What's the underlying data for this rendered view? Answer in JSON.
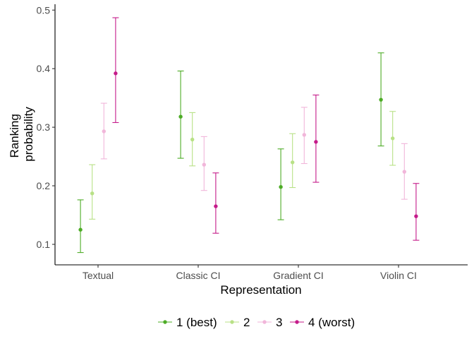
{
  "chart_data": {
    "type": "scatter",
    "title": "",
    "xlabel": "Representation",
    "ylabel": [
      "Ranking",
      "probability"
    ],
    "categories": [
      "Textual",
      "Classic CI",
      "Gradient CI",
      "Violin CI"
    ],
    "ylim": [
      0.065,
      0.51
    ],
    "yticks": [
      "0.1",
      "0.2",
      "0.3",
      "0.4",
      "0.5"
    ],
    "grid": false,
    "legend_position": "bottom",
    "series": [
      {
        "name": "1 (best)",
        "color": "#4dac26",
        "values": [
          0.125,
          0.318,
          0.198,
          0.347
        ],
        "lower": [
          0.086,
          0.247,
          0.142,
          0.268
        ],
        "upper": [
          0.176,
          0.396,
          0.263,
          0.427
        ]
      },
      {
        "name": "2",
        "color": "#b8e186",
        "values": [
          0.187,
          0.279,
          0.24,
          0.281
        ],
        "lower": [
          0.143,
          0.234,
          0.197,
          0.235
        ],
        "upper": [
          0.236,
          0.325,
          0.289,
          0.327
        ]
      },
      {
        "name": "3",
        "color": "#f1b6da",
        "values": [
          0.293,
          0.236,
          0.287,
          0.224
        ],
        "lower": [
          0.246,
          0.192,
          0.238,
          0.177
        ],
        "upper": [
          0.341,
          0.284,
          0.334,
          0.272
        ]
      },
      {
        "name": "4 (worst)",
        "color": "#c51b8a",
        "values": [
          0.392,
          0.165,
          0.275,
          0.148
        ],
        "lower": [
          0.308,
          0.119,
          0.206,
          0.107
        ],
        "upper": [
          0.487,
          0.222,
          0.355,
          0.204
        ]
      }
    ]
  }
}
